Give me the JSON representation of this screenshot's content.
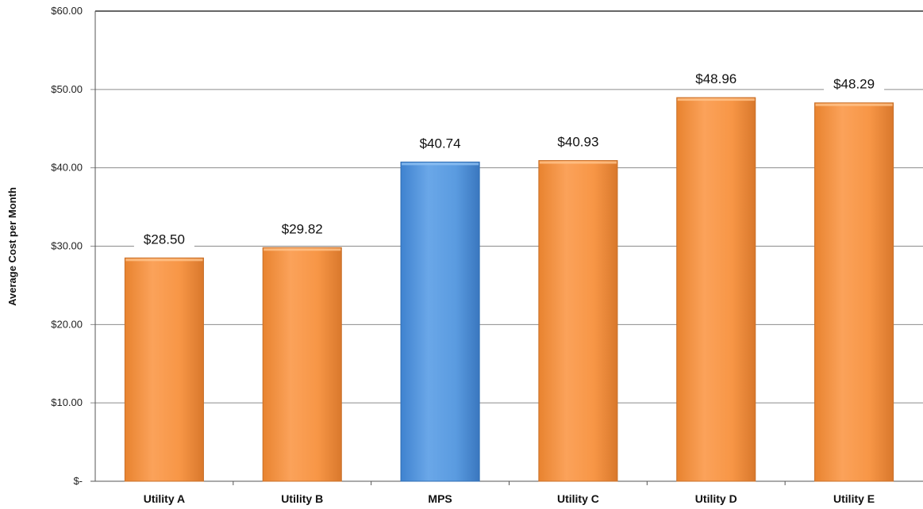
{
  "chart_data": {
    "type": "bar",
    "title": "",
    "xlabel": "",
    "ylabel": "Average Cost per Month",
    "categories": [
      "Utility A",
      "Utility B",
      "MPS",
      "Utility C",
      "Utility D",
      "Utility E"
    ],
    "values": [
      28.5,
      29.82,
      40.74,
      40.93,
      48.96,
      48.29
    ],
    "value_labels": [
      "$28.50",
      "$29.82",
      "$40.74",
      "$40.93",
      "$48.96",
      "$48.29"
    ],
    "ylim": [
      0,
      60
    ],
    "yticks": [
      0,
      10,
      20,
      30,
      40,
      50,
      60
    ],
    "ytick_labels": [
      "$-",
      "$10.00",
      "$20.00",
      "$30.00",
      "$40.00",
      "$50.00",
      "$60.00"
    ],
    "grid": true,
    "legend": "none",
    "colors": {
      "default_bar": "#f79646",
      "highlight_bar": "#5a9be0",
      "highlight_category": "MPS"
    }
  }
}
